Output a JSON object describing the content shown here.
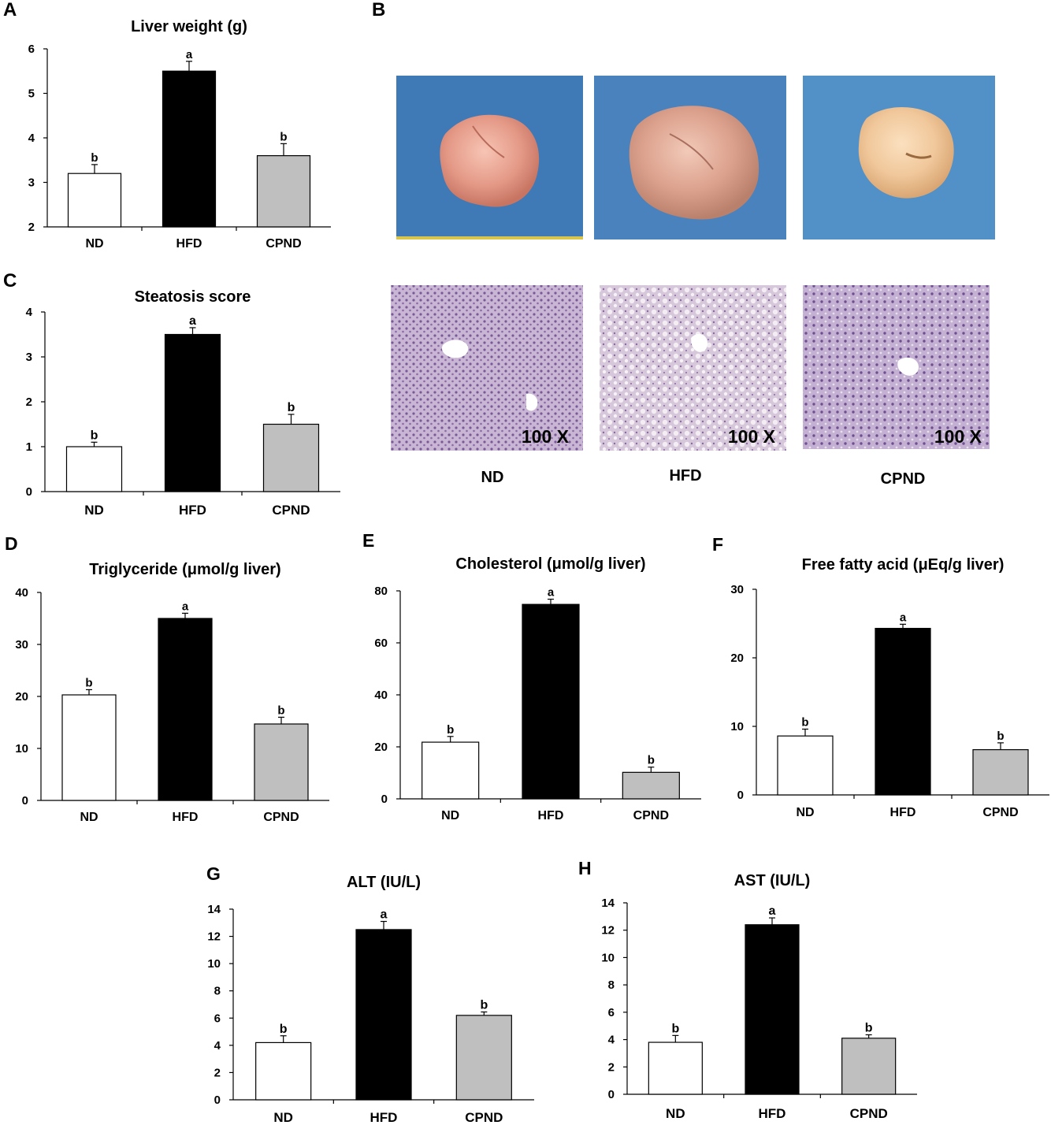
{
  "panel_b": {
    "letter": "B",
    "columns": [
      "ND",
      "HFD",
      "CPND"
    ],
    "magnification": "100 X"
  },
  "chart_data": [
    {
      "id": "A",
      "letter": "A",
      "type": "bar",
      "title": "Liver weight (g)",
      "categories": [
        "ND",
        "HFD",
        "CPND"
      ],
      "values": [
        3.2,
        5.5,
        3.6
      ],
      "errors": [
        0.2,
        0.22,
        0.27
      ],
      "labels": [
        "b",
        "a",
        "b"
      ],
      "ylim": [
        2,
        6
      ],
      "yticks": [
        2,
        3,
        4,
        5,
        6
      ],
      "colors": [
        "#ffffff",
        "#000000",
        "#bfbfbf"
      ],
      "grid": false
    },
    {
      "id": "C",
      "letter": "C",
      "type": "bar",
      "title": "Steatosis score",
      "categories": [
        "ND",
        "HFD",
        "CPND"
      ],
      "values": [
        1.0,
        3.5,
        1.5
      ],
      "errors": [
        0.1,
        0.15,
        0.22
      ],
      "labels": [
        "b",
        "a",
        "b"
      ],
      "ylim": [
        0,
        4
      ],
      "yticks": [
        0,
        1,
        2,
        3,
        4
      ],
      "colors": [
        "#ffffff",
        "#000000",
        "#bfbfbf"
      ],
      "grid": false
    },
    {
      "id": "D",
      "letter": "D",
      "type": "bar",
      "title": "Triglyceride (μmol/g liver)",
      "categories": [
        "ND",
        "HFD",
        "CPND"
      ],
      "values": [
        20.3,
        35.0,
        14.7
      ],
      "errors": [
        1.0,
        1.0,
        1.3
      ],
      "labels": [
        "b",
        "a",
        "b"
      ],
      "ylim": [
        0,
        40
      ],
      "yticks": [
        0,
        10,
        20,
        30,
        40
      ],
      "colors": [
        "#ffffff",
        "#000000",
        "#bfbfbf"
      ],
      "grid": false
    },
    {
      "id": "E",
      "letter": "E",
      "type": "bar",
      "title": "Cholesterol (μmol/g liver)",
      "categories": [
        "ND",
        "HFD",
        "CPND"
      ],
      "values": [
        21.8,
        74.8,
        10.2
      ],
      "errors": [
        2.2,
        2.0,
        2.0
      ],
      "labels": [
        "b",
        "a",
        "b"
      ],
      "ylim": [
        0,
        80
      ],
      "yticks": [
        0,
        20,
        40,
        60,
        80
      ],
      "colors": [
        "#ffffff",
        "#000000",
        "#bfbfbf"
      ],
      "grid": false
    },
    {
      "id": "F",
      "letter": "F",
      "type": "bar",
      "title": "Free fatty acid (μEq/g liver)",
      "categories": [
        "ND",
        "HFD",
        "CPND"
      ],
      "values": [
        8.6,
        24.3,
        6.6
      ],
      "errors": [
        1.0,
        0.6,
        1.0
      ],
      "labels": [
        "b",
        "a",
        "b"
      ],
      "ylim": [
        0,
        30
      ],
      "yticks": [
        0,
        10,
        20,
        30
      ],
      "colors": [
        "#ffffff",
        "#000000",
        "#bfbfbf"
      ],
      "grid": false
    },
    {
      "id": "G",
      "letter": "G",
      "type": "bar",
      "title": "ALT (IU/L)",
      "categories": [
        "ND",
        "HFD",
        "CPND"
      ],
      "values": [
        4.2,
        12.5,
        6.2
      ],
      "errors": [
        0.5,
        0.6,
        0.25
      ],
      "labels": [
        "b",
        "a",
        "b"
      ],
      "ylim": [
        0,
        14
      ],
      "yticks": [
        0,
        2,
        4,
        6,
        8,
        10,
        12,
        14
      ],
      "colors": [
        "#ffffff",
        "#000000",
        "#bfbfbf"
      ],
      "grid": false
    },
    {
      "id": "H",
      "letter": "H",
      "type": "bar",
      "title": "AST (IU/L)",
      "categories": [
        "ND",
        "HFD",
        "CPND"
      ],
      "values": [
        3.8,
        12.4,
        4.1
      ],
      "errors": [
        0.5,
        0.5,
        0.25
      ],
      "labels": [
        "b",
        "a",
        "b"
      ],
      "ylim": [
        0,
        14
      ],
      "yticks": [
        0,
        2,
        4,
        6,
        8,
        10,
        12,
        14
      ],
      "colors": [
        "#ffffff",
        "#000000",
        "#bfbfbf"
      ],
      "grid": false
    }
  ]
}
